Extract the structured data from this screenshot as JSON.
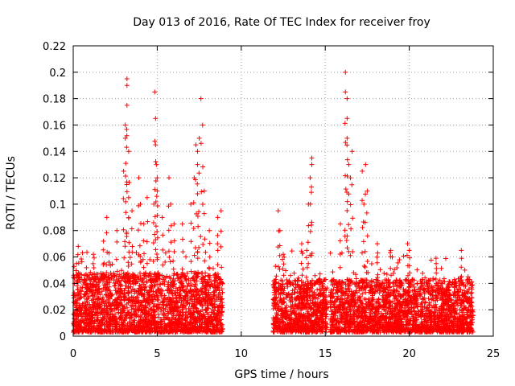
{
  "chart_data": {
    "type": "scatter",
    "title": "Day 013 of 2016, Rate Of TEC Index for receiver froy",
    "xlabel": "GPS time / hours",
    "ylabel": "ROTI / TECUs",
    "xlim": [
      0,
      25
    ],
    "ylim": [
      0,
      0.22
    ],
    "xticks": [
      "0",
      "5",
      "10",
      "15",
      "20",
      "25"
    ],
    "yticks": [
      "0",
      "0.02",
      "0.04",
      "0.06",
      "0.08",
      "0.1",
      "0.12",
      "0.14",
      "0.16",
      "0.18",
      "0.2",
      "0.22"
    ],
    "grid": true,
    "legend": "none",
    "marker": "plus",
    "color": "#ff0000",
    "data_segments": [
      {
        "x_start": 0.0,
        "x_end": 8.9,
        "base_max": 0.045
      },
      {
        "x_start": 11.9,
        "x_end": 15.1,
        "base_max": 0.04
      },
      {
        "x_start": 15.3,
        "x_end": 23.8,
        "base_max": 0.04
      }
    ],
    "series": [
      {
        "x": [
          0.2,
          0.3,
          1.2,
          1.8,
          2.0,
          2.6,
          3.0,
          3.1,
          3.1,
          3.2,
          3.2,
          3.2,
          3.3,
          3.3,
          3.5,
          3.9,
          4.0,
          4.2,
          4.4,
          4.8,
          4.85,
          4.9,
          4.9,
          4.95,
          5.0,
          5.0,
          5.3,
          5.7,
          5.8,
          6.0,
          6.5,
          7.0,
          7.2,
          7.3,
          7.4,
          7.4,
          7.5,
          7.6,
          7.7,
          7.8,
          8.1,
          8.6,
          8.8,
          12.2,
          12.3,
          12.5,
          13.6,
          13.9,
          14.0,
          14.1,
          14.2,
          14.2,
          15.9,
          16.2,
          16.2,
          16.3,
          16.3,
          16.3,
          16.4,
          16.5,
          16.6,
          17.2,
          17.3,
          17.4,
          17.5,
          18.1,
          18.9,
          19.9,
          20.0,
          21.6,
          23.1,
          23.5
        ],
        "y": [
          0.055,
          0.068,
          0.062,
          0.072,
          0.09,
          0.08,
          0.125,
          0.15,
          0.16,
          0.175,
          0.19,
          0.195,
          0.14,
          0.105,
          0.095,
          0.12,
          0.1,
          0.085,
          0.105,
          0.1,
          0.185,
          0.165,
          0.145,
          0.13,
          0.12,
          0.11,
          0.09,
          0.12,
          0.1,
          0.085,
          0.085,
          0.1,
          0.12,
          0.145,
          0.14,
          0.13,
          0.15,
          0.18,
          0.16,
          0.11,
          0.08,
          0.09,
          0.095,
          0.095,
          0.08,
          0.062,
          0.07,
          0.065,
          0.1,
          0.12,
          0.135,
          0.13,
          0.085,
          0.2,
          0.185,
          0.18,
          0.165,
          0.15,
          0.13,
          0.12,
          0.14,
          0.125,
          0.1,
          0.13,
          0.11,
          0.07,
          0.065,
          0.07,
          0.065,
          0.055,
          0.065,
          0.045
        ]
      }
    ]
  }
}
